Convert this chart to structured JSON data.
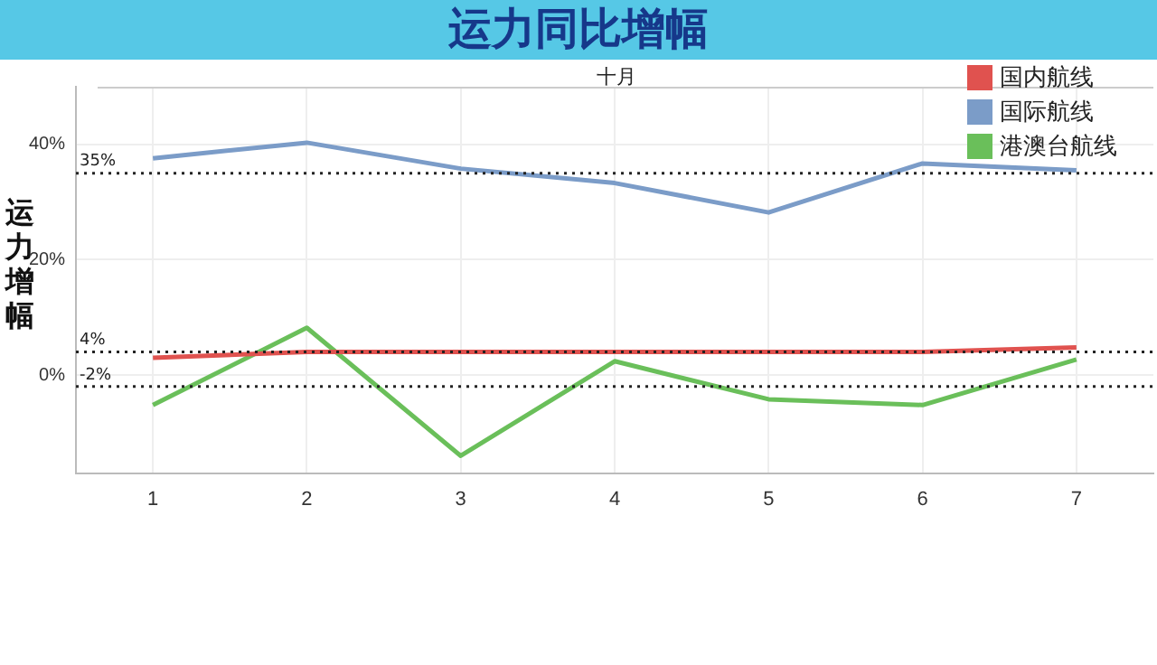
{
  "chart_data": {
    "type": "line",
    "title": "运力同比增幅",
    "subtitle": "十月",
    "ylabel": "运力增幅",
    "categories": [
      "1",
      "2",
      "3",
      "4",
      "5",
      "6",
      "7"
    ],
    "series": [
      {
        "name": "国内航线",
        "color": "#e0524f",
        "values": [
          3,
          4,
          4,
          4,
          4,
          4,
          4.8
        ]
      },
      {
        "name": "国际航线",
        "color": "#7b9cc8",
        "values": [
          37.6,
          40.3,
          35.8,
          33.3,
          28.2,
          36.7,
          35.5
        ]
      },
      {
        "name": "港澳台航线",
        "color": "#6abf5a",
        "values": [
          -5.2,
          8.2,
          -14,
          2.4,
          -4.2,
          -5.2,
          2.7
        ]
      }
    ],
    "ylim": [
      -17,
      50
    ],
    "yticks": [
      {
        "value": 0,
        "label": "0%"
      },
      {
        "value": 20,
        "label": "20%"
      },
      {
        "value": 40,
        "label": "40%"
      }
    ],
    "ref_lines": [
      {
        "axis": "y",
        "value": 35,
        "label": "35%",
        "color": "#222222",
        "line_style": "dotted"
      },
      {
        "axis": "y",
        "value": 4,
        "label": "4%",
        "color": "#222222",
        "line_style": "dotted"
      },
      {
        "axis": "y",
        "value": -2,
        "label": "-2%",
        "color": "#222222",
        "line_style": "dotted"
      }
    ],
    "grid": true,
    "legend": "top right",
    "marker": "none",
    "line_style": "solid"
  }
}
